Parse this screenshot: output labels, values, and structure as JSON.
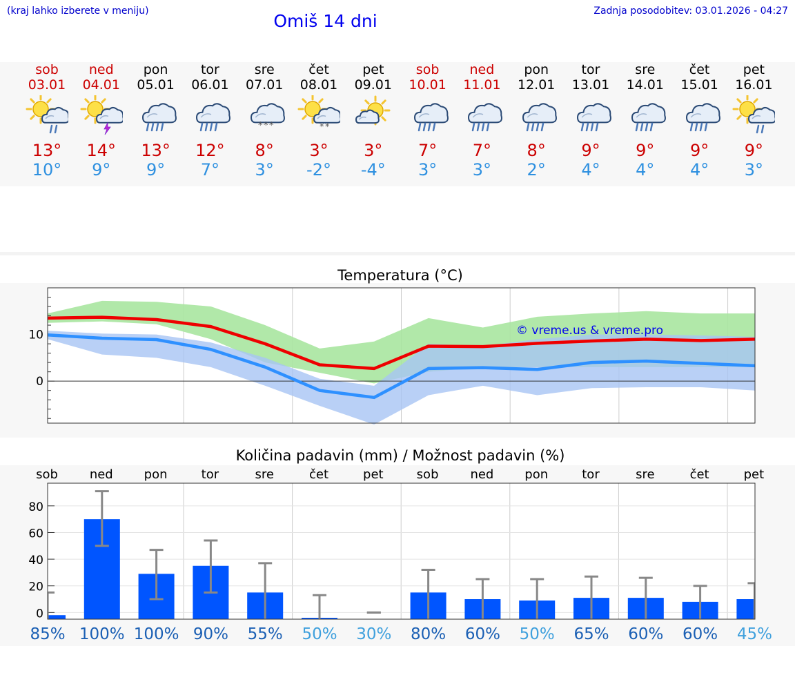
{
  "header": {
    "hint": "(kraj lahko izberete v meniju)",
    "title": "Omiš 14 dni",
    "updated": "Zadnja posodobitev: 03.01.2026 - 04:27"
  },
  "days": [
    {
      "name": "sob",
      "date": "03.01",
      "weekend": true,
      "icon": "sun-cloud-rain-icon",
      "max": "13°",
      "min": "10°"
    },
    {
      "name": "ned",
      "date": "04.01",
      "weekend": true,
      "icon": "sun-cloud-thunder-icon",
      "max": "14°",
      "min": "9°"
    },
    {
      "name": "pon",
      "date": "05.01",
      "weekend": false,
      "icon": "cloud-rain-icon",
      "max": "13°",
      "min": "9°"
    },
    {
      "name": "tor",
      "date": "06.01",
      "weekend": false,
      "icon": "cloud-rain-icon",
      "max": "12°",
      "min": "7°"
    },
    {
      "name": "sre",
      "date": "07.01",
      "weekend": false,
      "icon": "cloud-snow-icon",
      "max": "8°",
      "min": "3°"
    },
    {
      "name": "čet",
      "date": "08.01",
      "weekend": false,
      "icon": "sun-cloud-snow-icon",
      "max": "3°",
      "min": "-2°"
    },
    {
      "name": "pet",
      "date": "09.01",
      "weekend": false,
      "icon": "sun-cloud-icon",
      "max": "3°",
      "min": "-4°"
    },
    {
      "name": "sob",
      "date": "10.01",
      "weekend": true,
      "icon": "cloud-rain-icon",
      "max": "7°",
      "min": "3°"
    },
    {
      "name": "ned",
      "date": "11.01",
      "weekend": true,
      "icon": "cloud-rain-icon",
      "max": "7°",
      "min": "3°"
    },
    {
      "name": "pon",
      "date": "12.01",
      "weekend": false,
      "icon": "cloud-rain-icon",
      "max": "8°",
      "min": "2°"
    },
    {
      "name": "tor",
      "date": "13.01",
      "weekend": false,
      "icon": "cloud-rain-icon",
      "max": "9°",
      "min": "4°"
    },
    {
      "name": "sre",
      "date": "14.01",
      "weekend": false,
      "icon": "cloud-rain-icon",
      "max": "9°",
      "min": "4°"
    },
    {
      "name": "čet",
      "date": "15.01",
      "weekend": false,
      "icon": "cloud-rain-icon",
      "max": "9°",
      "min": "4°"
    },
    {
      "name": "pet",
      "date": "16.01",
      "weekend": false,
      "icon": "sun-cloud-rain-icon",
      "max": "9°",
      "min": "3°"
    }
  ],
  "colors": {
    "max_line": "#ee0000",
    "min_line": "#2e90ff",
    "max_band": "#a8e6a0",
    "min_band": "#a8c4f4",
    "bar": "#0055ff",
    "error": "#888888",
    "weekend_text": "#cc0000",
    "prob_high": "#1a5fb4",
    "prob_low": "#3fa0dd"
  },
  "chart_data": [
    {
      "type": "line",
      "title": "Temperatura (°C)",
      "watermark": "© vreme.us & vreme.pro",
      "categories": [
        "sob",
        "ned",
        "pon",
        "tor",
        "sre",
        "čet",
        "pet",
        "sob",
        "ned",
        "pon",
        "tor",
        "sre",
        "čet",
        "pet"
      ],
      "ylim": [
        -9,
        20
      ],
      "yticks": [
        0,
        10
      ],
      "series": [
        {
          "name": "max",
          "values": [
            13.5,
            13.7,
            13.2,
            11.7,
            8.0,
            3.5,
            2.7,
            7.5,
            7.4,
            8.1,
            8.6,
            9.0,
            8.7,
            9.0
          ],
          "band_upper": [
            14.5,
            17.2,
            17.0,
            16.0,
            12.0,
            7.0,
            8.5,
            13.5,
            11.5,
            13.8,
            14.5,
            15.0,
            14.5,
            14.5
          ],
          "band_lower": [
            12.5,
            12.8,
            12.2,
            9.0,
            4.0,
            1.8,
            -0.5,
            2.0,
            3.0,
            3.0,
            3.0,
            3.0,
            3.0,
            3.0
          ]
        },
        {
          "name": "min",
          "values": [
            9.9,
            9.2,
            8.9,
            6.8,
            3.0,
            -2.0,
            -3.5,
            2.7,
            2.9,
            2.5,
            4.0,
            4.3,
            3.8,
            3.3
          ],
          "band_upper": [
            10.8,
            10.2,
            10.0,
            8.3,
            5.0,
            0.5,
            -1.0,
            8.0,
            7.5,
            9.0,
            10.0,
            10.0,
            9.8,
            9.5
          ],
          "band_lower": [
            9.0,
            5.7,
            5.0,
            3.0,
            -1.0,
            -5.3,
            -9.3,
            -3.0,
            -1.0,
            -3.0,
            -1.5,
            -1.3,
            -1.3,
            -2.0
          ]
        }
      ]
    },
    {
      "type": "bar",
      "title": "Količina padavin (mm) / Možnost padavin (%)",
      "categories": [
        "sob",
        "ned",
        "pon",
        "tor",
        "sre",
        "čet",
        "pet",
        "sob",
        "ned",
        "pon",
        "tor",
        "sre",
        "čet",
        "pet"
      ],
      "ylim": [
        -5,
        97
      ],
      "yticks": [
        0,
        20,
        40,
        60,
        80
      ],
      "values": [
        3,
        70,
        29,
        35,
        15,
        1,
        0,
        15,
        10,
        9,
        11,
        11,
        8,
        10
      ],
      "error_high": [
        15,
        91,
        47,
        54,
        37,
        13,
        0,
        32,
        25,
        25,
        27,
        26,
        20,
        22
      ],
      "error_low": [
        -5,
        50,
        10,
        15,
        -5,
        -5,
        0,
        -5,
        -5,
        -5,
        -5,
        -5,
        -5,
        -5
      ],
      "probability": [
        "85%",
        "100%",
        "100%",
        "90%",
        "55%",
        "50%",
        "30%",
        "80%",
        "60%",
        "50%",
        "65%",
        "60%",
        "60%",
        "45%"
      ],
      "probability_values": [
        85,
        100,
        100,
        90,
        55,
        50,
        30,
        80,
        60,
        50,
        65,
        60,
        60,
        45
      ]
    }
  ]
}
